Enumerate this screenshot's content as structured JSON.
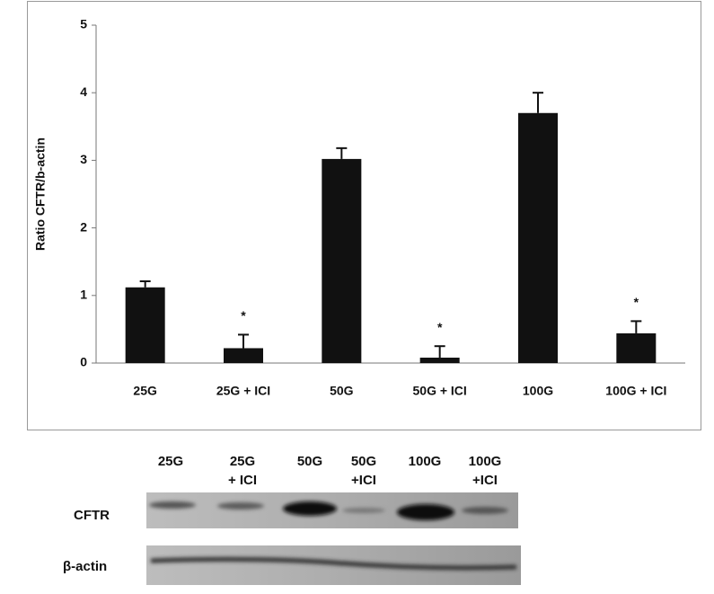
{
  "chart_data": {
    "type": "bar",
    "ylabel": "Ratio CFTR/b-actin",
    "categories": [
      "25G",
      "25G + ICI",
      "50G",
      "50G + ICI",
      "100G",
      "100G + ICI"
    ],
    "values": [
      1.12,
      0.22,
      3.02,
      0.08,
      3.7,
      0.44
    ],
    "errors": [
      0.09,
      0.2,
      0.16,
      0.17,
      0.3,
      0.18
    ],
    "markers": [
      null,
      "*",
      null,
      "*",
      null,
      "*"
    ],
    "color": "#111111",
    "ylim": [
      0,
      5
    ],
    "yticks": [
      0,
      1,
      2,
      3,
      4,
      5
    ],
    "grid": false
  },
  "blot": {
    "lanes": [
      [
        "25G"
      ],
      [
        "25G",
        "+ ICI"
      ],
      [
        "50G"
      ],
      [
        "50G",
        "+ICI"
      ],
      [
        "100G"
      ],
      [
        "100G",
        "+ICI"
      ]
    ],
    "rows": [
      "CFTR",
      "β-actin"
    ]
  }
}
